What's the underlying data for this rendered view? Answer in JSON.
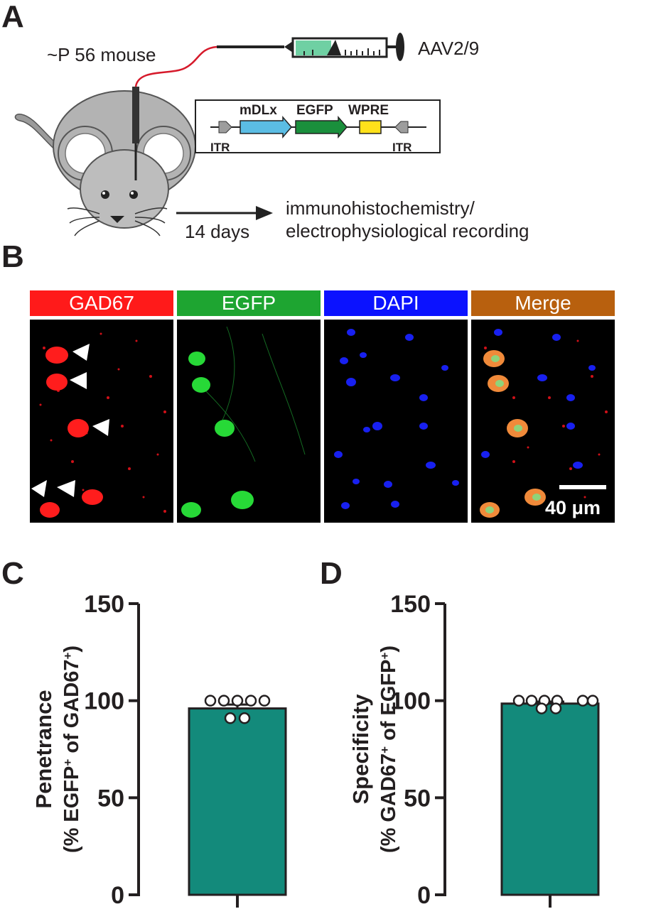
{
  "panels": {
    "A": {
      "letter": "A",
      "mouse_label": "~P 56 mouse",
      "virus_label": "AAV2/9",
      "construct": {
        "elements": [
          "mDLx",
          "EGFP",
          "WPRE"
        ],
        "itr_left": "ITR",
        "itr_right": "ITR",
        "colors": {
          "mdlx": "#5bbde4",
          "egfp": "#1a8f3c",
          "wpre": "#ffe11a",
          "itr": "#9d9d9d"
        }
      },
      "time_label": "14 days",
      "outcome_line1": "immunohistochemistry/",
      "outcome_line2": "electrophysiological recording"
    },
    "B": {
      "letter": "B",
      "channels": [
        {
          "label": "GAD67",
          "color": "#ff1a1a"
        },
        {
          "label": "EGFP",
          "color": "#1ea531"
        },
        {
          "label": "DAPI",
          "color": "#0b12ff"
        },
        {
          "label": "Merge",
          "color": "#b8600e"
        }
      ],
      "scale_bar": "40 μm"
    },
    "C": {
      "letter": "C"
    },
    "D": {
      "letter": "D"
    }
  },
  "chart_data": [
    {
      "type": "bar",
      "ylabel_line1": "Penetrance",
      "ylabel_line2_parts": [
        "(% EGFP",
        "+",
        " of GAD67",
        "+",
        ")"
      ],
      "ylim": [
        0,
        150
      ],
      "yticks": [
        "0",
        "50",
        "100",
        "150"
      ],
      "bar_value": 96,
      "sem": 2,
      "points": [
        100,
        100,
        100,
        100,
        100,
        91,
        91
      ],
      "bar_color": "#138a7b"
    },
    {
      "type": "bar",
      "ylabel_line1": "Specificity",
      "ylabel_line2_parts": [
        "(% GAD67",
        "+",
        " of EGFP",
        "+",
        ")"
      ],
      "ylim": [
        0,
        150
      ],
      "yticks": [
        "0",
        "50",
        "100",
        "150"
      ],
      "bar_value": 98.5,
      "sem": 1,
      "points": [
        100,
        100,
        100,
        100,
        100,
        100,
        96,
        96
      ],
      "bar_color": "#138a7b"
    }
  ]
}
